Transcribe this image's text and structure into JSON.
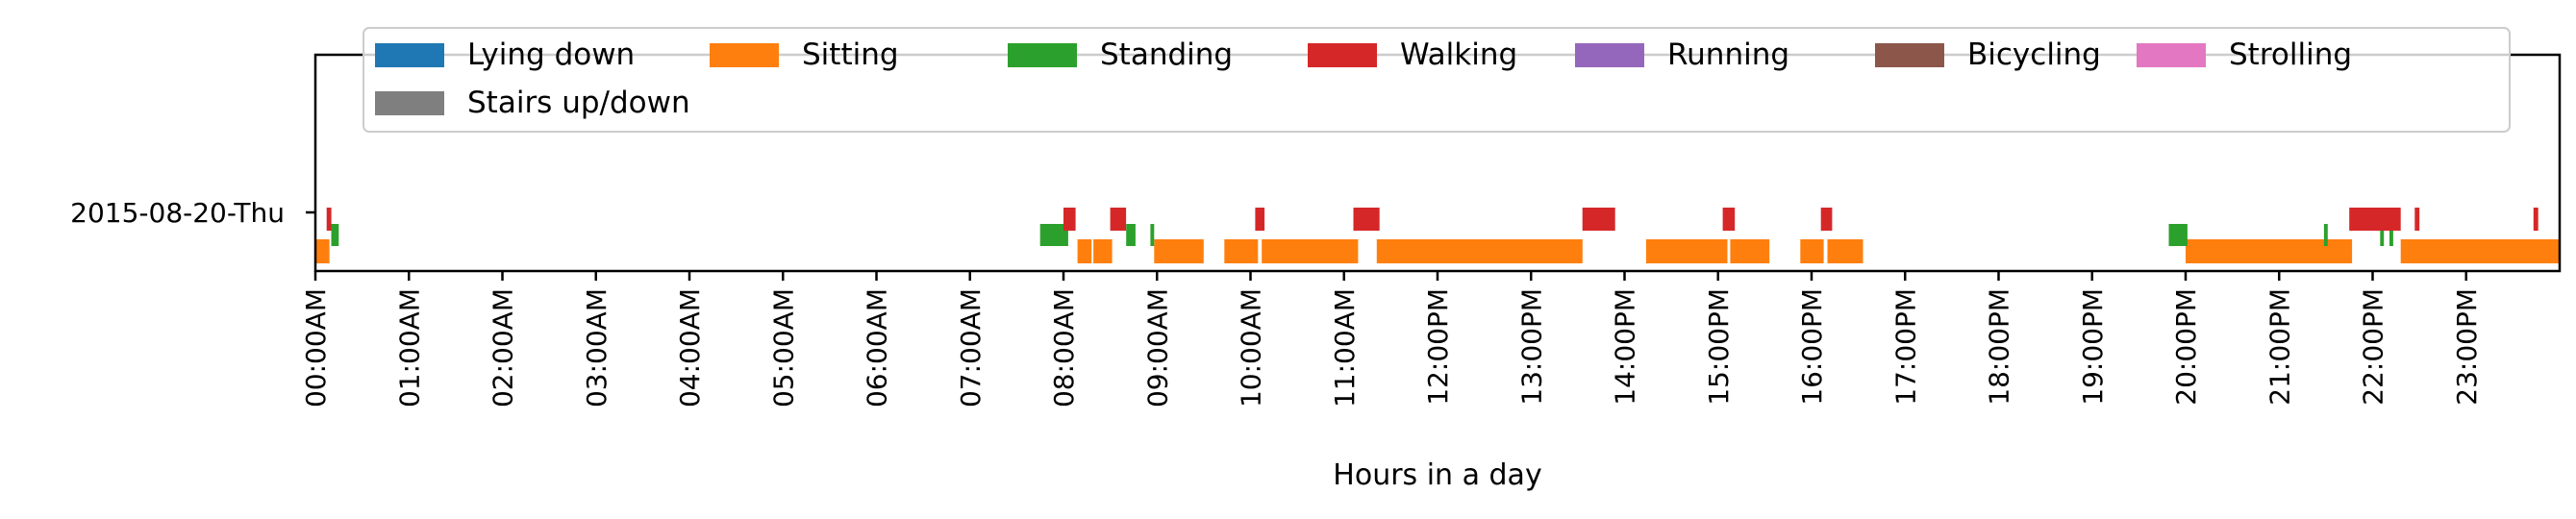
{
  "chart_data": {
    "type": "timeline",
    "xlabel": "Hours in a day",
    "xlim": [
      0,
      24
    ],
    "day_label": "2015-08-20-Thu",
    "x_ticks": [
      "00:00AM",
      "01:00AM",
      "02:00AM",
      "03:00AM",
      "04:00AM",
      "05:00AM",
      "06:00AM",
      "07:00AM",
      "08:00AM",
      "09:00AM",
      "10:00AM",
      "11:00AM",
      "12:00PM",
      "13:00PM",
      "14:00PM",
      "15:00PM",
      "16:00PM",
      "17:00PM",
      "18:00PM",
      "19:00PM",
      "20:00PM",
      "21:00PM",
      "22:00PM",
      "23:00PM"
    ],
    "legend_position": "top",
    "series": [
      {
        "name": "Lying down",
        "color": "#1f77b4",
        "segments": []
      },
      {
        "name": "Sitting",
        "color": "#ff7f0e",
        "segments": [
          [
            0.0,
            0.15
          ],
          [
            8.15,
            8.3
          ],
          [
            8.32,
            8.52
          ],
          [
            8.97,
            9.5
          ],
          [
            9.72,
            10.08
          ],
          [
            10.12,
            11.15
          ],
          [
            11.35,
            13.55
          ],
          [
            14.23,
            15.1
          ],
          [
            15.13,
            15.55
          ],
          [
            15.88,
            16.13
          ],
          [
            16.17,
            16.55
          ],
          [
            20.0,
            21.78
          ],
          [
            22.3,
            24.0
          ]
        ]
      },
      {
        "name": "Standing",
        "color": "#2ca02c",
        "segments": [
          [
            0.17,
            0.25
          ],
          [
            7.75,
            8.05
          ],
          [
            8.67,
            8.77
          ],
          [
            8.93,
            8.97
          ],
          [
            19.82,
            20.02
          ],
          [
            21.48,
            21.52
          ],
          [
            22.08,
            22.12
          ],
          [
            22.18,
            22.22
          ]
        ]
      },
      {
        "name": "Walking",
        "color": "#d62728",
        "segments": [
          [
            0.12,
            0.17
          ],
          [
            8.0,
            8.13
          ],
          [
            8.5,
            8.67
          ],
          [
            10.05,
            10.15
          ],
          [
            11.1,
            11.38
          ],
          [
            13.55,
            13.9
          ],
          [
            15.05,
            15.18
          ],
          [
            16.1,
            16.22
          ],
          [
            21.75,
            22.3
          ],
          [
            22.45,
            22.5
          ],
          [
            23.72,
            23.77
          ]
        ]
      },
      {
        "name": "Running",
        "color": "#9467bd",
        "segments": []
      },
      {
        "name": "Bicycling",
        "color": "#8c564b",
        "segments": []
      },
      {
        "name": "Strolling",
        "color": "#e377c2",
        "segments": []
      },
      {
        "name": "Stairs up/down",
        "color": "#7f7f7f",
        "segments": []
      }
    ]
  }
}
